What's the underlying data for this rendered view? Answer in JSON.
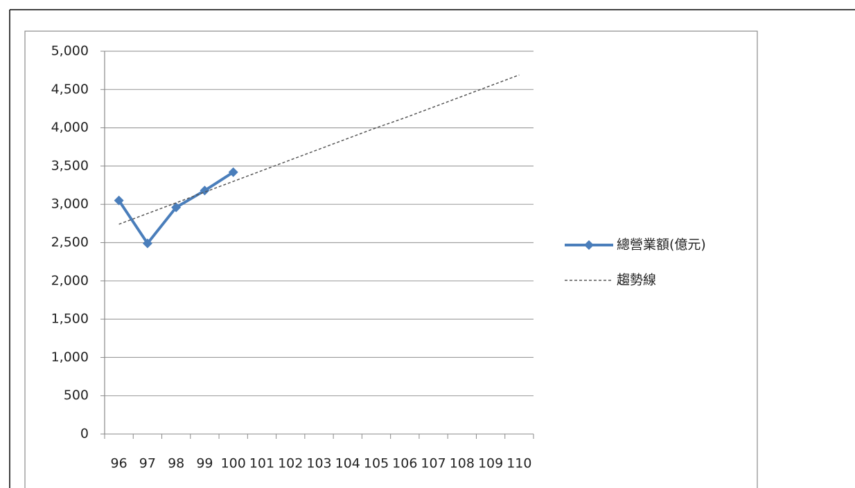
{
  "chart_data": {
    "type": "line",
    "categories": [
      "96",
      "97",
      "98",
      "99",
      "100",
      "101",
      "102",
      "103",
      "104",
      "105",
      "106",
      "107",
      "108",
      "109",
      "110"
    ],
    "series": [
      {
        "name": "總營業額(億元)",
        "color": "#4a7ebb",
        "marker": "diamond",
        "style": "solid",
        "values": [
          3050,
          2490,
          2960,
          3180,
          3420,
          null,
          null,
          null,
          null,
          null,
          null,
          null,
          null,
          null,
          null
        ]
      },
      {
        "name": "趨勢線",
        "color": "#555555",
        "marker": "none",
        "style": "dashed",
        "values": [
          2740,
          2880,
          3020,
          3160,
          3300,
          3440,
          3580,
          3720,
          3860,
          4000,
          4130,
          4270,
          4410,
          4550,
          4690
        ]
      }
    ],
    "ylim": [
      0,
      5000
    ],
    "yticks": [
      0,
      500,
      {
        "value": 1000,
        "label": "1,000"
      },
      {
        "value": 1500,
        "label": "1,500"
      },
      {
        "value": 2000,
        "label": "2,000"
      },
      {
        "value": 2500,
        "label": "2,500"
      },
      {
        "value": 3000,
        "label": "3,000"
      },
      {
        "value": 3500,
        "label": "3,500"
      },
      {
        "value": 4000,
        "label": "4,000"
      },
      {
        "value": 4500,
        "label": "4,500"
      },
      {
        "value": 5000,
        "label": "5,000"
      }
    ],
    "grid": true,
    "legend": "right"
  }
}
